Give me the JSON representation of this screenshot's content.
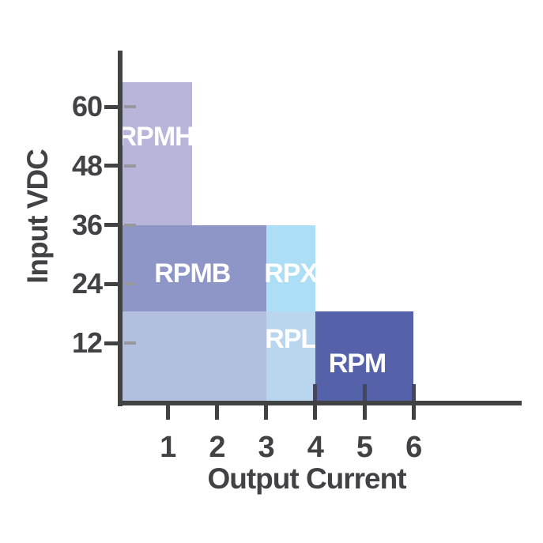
{
  "chart_data": {
    "type": "area",
    "title": "",
    "xlabel": "Output Current",
    "ylabel": "Input VDC",
    "x_ticks": [
      1,
      2,
      3,
      4,
      5,
      6
    ],
    "y_ticks": [
      12,
      24,
      36,
      48,
      60
    ],
    "xlim": [
      0,
      8.2
    ],
    "ylim": [
      0,
      71
    ],
    "grid": false,
    "legend": "none",
    "axis_color": "#404244",
    "tick_label_color": "#404244",
    "inner_tick_color": "#97989b",
    "background_color": "#ffffff",
    "regions": [
      {
        "label": "RPMH",
        "x": [
          0,
          1.5
        ],
        "y": [
          36,
          65
        ],
        "color": "#b8b5db",
        "text_color": "#ffffff"
      },
      {
        "label": "RPMB",
        "x": [
          0,
          3
        ],
        "y": [
          18.5,
          36
        ],
        "color": "#8e96c8",
        "text_color": "#ffffff"
      },
      {
        "label": "RPX",
        "x": [
          3,
          4
        ],
        "y": [
          18.5,
          36
        ],
        "color": "#acdef6",
        "text_color": "#ffffff"
      },
      {
        "label": "",
        "x": [
          0,
          3
        ],
        "y": [
          0,
          18.5
        ],
        "color": "#b2bfdf",
        "text_color": "#ffffff"
      },
      {
        "label": "RPL",
        "x": [
          3,
          4
        ],
        "y": [
          0,
          18.5
        ],
        "color": "#bad5ee",
        "text_color": "#ffffff"
      },
      {
        "label": "RPM",
        "x": [
          4,
          6
        ],
        "y": [
          0,
          18.5
        ],
        "color": "#5561a8",
        "text_color": "#ffffff"
      }
    ]
  }
}
